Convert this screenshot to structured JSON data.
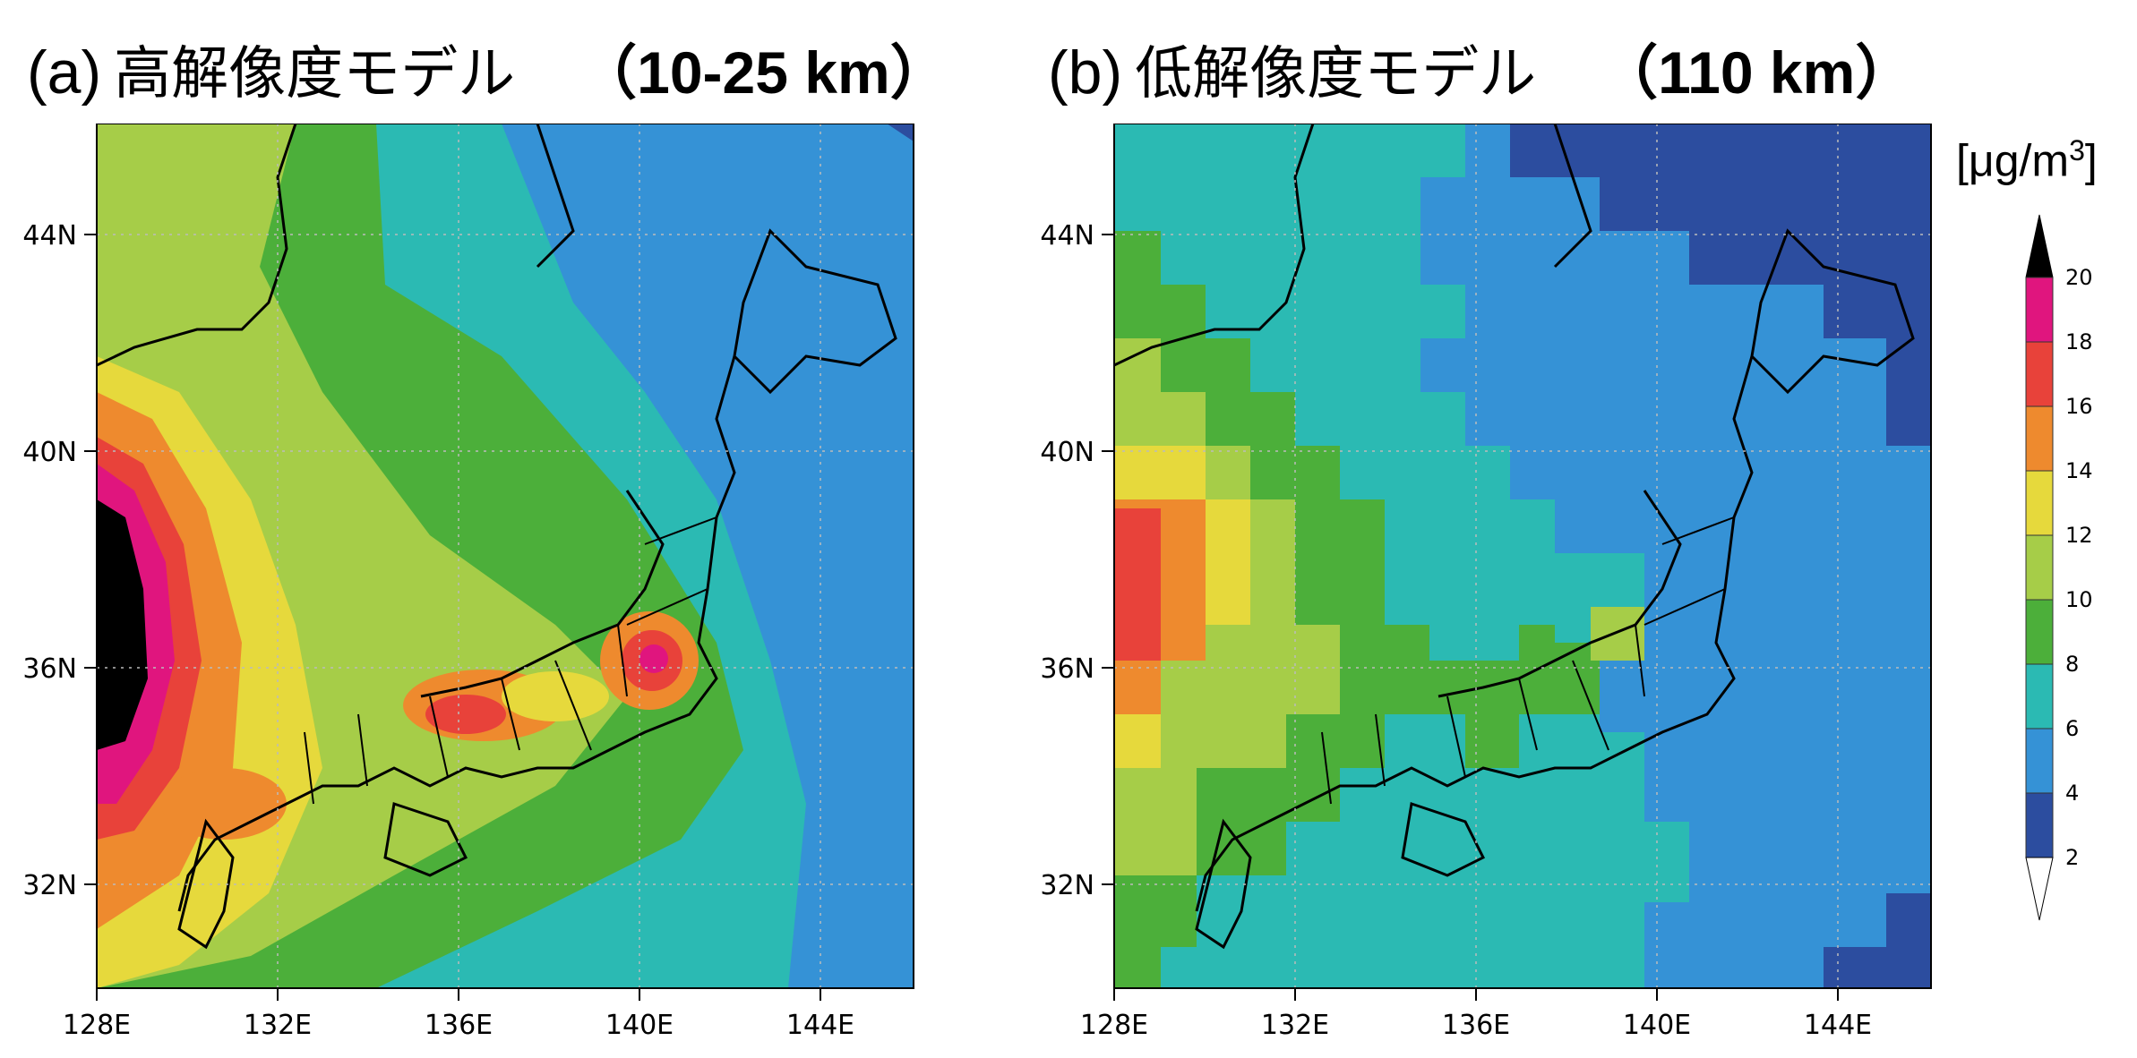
{
  "panels": [
    {
      "tag": "(a)",
      "name": "高解像度モデル",
      "resolution": "（10-25 km）"
    },
    {
      "tag": "(b)",
      "name": "低解像度モデル",
      "resolution": "（110 km）"
    }
  ],
  "axes": {
    "x_ticks": [
      "128E",
      "132E",
      "136E",
      "140E",
      "144E"
    ],
    "y_ticks": [
      "44N",
      "40N",
      "36N",
      "32N"
    ]
  },
  "colorbar": {
    "unit": "[μg/m",
    "unit_sup": "3",
    "unit_close": "]",
    "labels": [
      "20",
      "18",
      "16",
      "14",
      "12",
      "10",
      "8",
      "6",
      "4",
      "2"
    ],
    "colors": [
      "#e0157e",
      "#e8423a",
      "#ee8a2e",
      "#e6d93c",
      "#a6cd48",
      "#4caf3a",
      "#2bbab3",
      "#3592d6",
      "#2c4d9f"
    ],
    "over_color": "#000000",
    "under_color": "#ffffff"
  },
  "map": {
    "ocean_color": "#2bbab3",
    "coast_color": "#000000"
  }
}
